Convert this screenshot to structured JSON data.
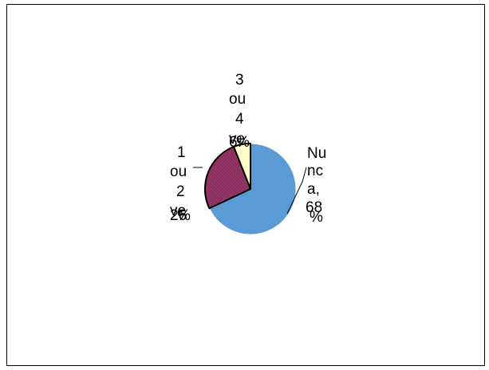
{
  "chart_data": {
    "type": "pie",
    "title": "",
    "slices": [
      {
        "label": "Nunca",
        "value": 68,
        "value_text": "68",
        "percent_text": "%",
        "color": "#5B9BD5"
      },
      {
        "label": "1 ou 2 ve",
        "value": 26,
        "value_text": "26",
        "percent_text": "%",
        "color": "#953767"
      },
      {
        "label": "3 ou 4 ve",
        "value": 6,
        "value_text": "6",
        "percent_text": "%",
        "color": "#FFFFCC"
      }
    ],
    "label_lines": {
      "nunca": [
        "Nu",
        "nc",
        "a,",
        "68",
        "%"
      ],
      "one_two": [
        "1",
        "ou",
        "2",
        "ve",
        "26",
        "%"
      ],
      "three_four": [
        "3",
        "ou",
        "4",
        "ve",
        "6",
        "%"
      ]
    },
    "legend": "none",
    "border_color": "#000000"
  }
}
